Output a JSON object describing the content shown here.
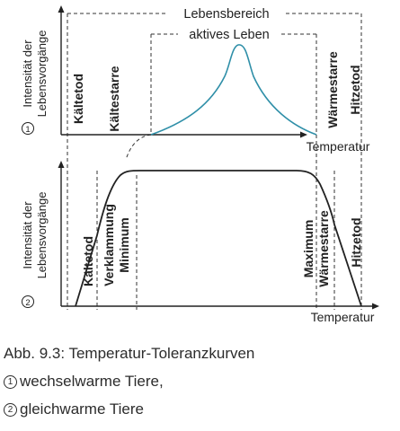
{
  "diagram": {
    "labels": {
      "lebensbereich": "Lebensbereich",
      "aktives_leben": "aktives Leben",
      "temperatur_1": "Temperatur",
      "temperatur_2": "Temperatur",
      "y_axis_1_line1": "Intensität der",
      "y_axis_1_line2": "Lebensvorgänge",
      "y_axis_2_line1": "Intensität der",
      "y_axis_2_line2": "Lebensvorgänge",
      "marker_1": "1",
      "marker_2": "2"
    },
    "panel1_zones": {
      "kaeltetod": "Kältetod",
      "kaeltestarre": "Kältestarre",
      "waermestarre": "Wärmestarre",
      "hitzetod": "Hitzetod"
    },
    "panel2_zones": {
      "kaeltetod": "Kältetod",
      "verklammung": "Verklammung",
      "minimum": "Minimum",
      "maximum": "Maximum",
      "waermestarre": "Wärmestarre",
      "hitzetod": "Hitzetod"
    },
    "colors": {
      "curve1": "#2f8fa8",
      "curve2": "#222222",
      "axis": "#222222",
      "dashed": "#333333"
    }
  },
  "caption": {
    "line1": "Abb. 9.3: Temperatur-Toleranzkurven",
    "line2_num": "1",
    "line2_text": "wechselwarme Tiere,",
    "line3_num": "2",
    "line3_text": "gleichwarme Tiere"
  }
}
